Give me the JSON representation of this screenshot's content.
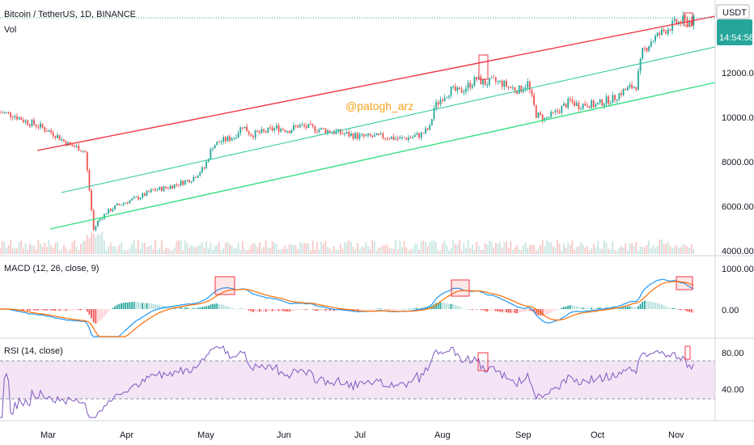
{
  "header": {
    "symbol": "Bitcoin / TetherUS, 1D, BINANCE",
    "volume_label": "Vol",
    "currency": "USDT",
    "countdown": "14:54:58"
  },
  "watermark": "@patogh_arz",
  "colors": {
    "up": "#26a69a",
    "down": "#ef5350",
    "resistance": "#f23645",
    "mid_channel": "#26c6a0",
    "support": "#35e07e",
    "macd_line": "#2196f3",
    "signal_line": "#ff6d00",
    "rsi_line": "#7e57c2",
    "rsi_band": "#f3e5f5",
    "price_badge": "#26a69a"
  },
  "chart_data": [
    {
      "type": "candlestick",
      "title": "Bitcoin / TetherUS, 1D, BINANCE",
      "x_ticks": [
        "Mar",
        "Apr",
        "May",
        "Jun",
        "Jul",
        "Aug",
        "Sep",
        "Oct",
        "Nov"
      ],
      "y_ticks": [
        "12000.00",
        "10000.00",
        "8000.00",
        "6000.00",
        "4000.00"
      ],
      "ylim": [
        4000,
        14500
      ],
      "close_path": [
        [
          0,
          10300
        ],
        [
          6,
          10200
        ],
        [
          12,
          9900
        ],
        [
          18,
          9700
        ],
        [
          22,
          9500
        ],
        [
          26,
          9300
        ],
        [
          30,
          9000
        ],
        [
          33,
          8800
        ],
        [
          37,
          8700
        ],
        [
          40,
          8500
        ],
        [
          42,
          6800
        ],
        [
          44,
          5000
        ],
        [
          46,
          5400
        ],
        [
          50,
          5800
        ],
        [
          55,
          6100
        ],
        [
          60,
          6300
        ],
        [
          66,
          6500
        ],
        [
          72,
          6800
        ],
        [
          78,
          6900
        ],
        [
          84,
          7100
        ],
        [
          90,
          7300
        ],
        [
          96,
          7800
        ],
        [
          100,
          8800
        ],
        [
          104,
          9000
        ],
        [
          110,
          9200
        ],
        [
          114,
          9700
        ],
        [
          118,
          9300
        ],
        [
          124,
          9400
        ],
        [
          130,
          9600
        ],
        [
          136,
          9500
        ],
        [
          140,
          9700
        ],
        [
          146,
          9600
        ],
        [
          152,
          9500
        ],
        [
          158,
          9400
        ],
        [
          164,
          9300
        ],
        [
          170,
          9200
        ],
        [
          176,
          9200
        ],
        [
          182,
          9200
        ],
        [
          188,
          9100
        ],
        [
          194,
          9200
        ],
        [
          198,
          9300
        ],
        [
          202,
          9600
        ],
        [
          204,
          10500
        ],
        [
          208,
          11000
        ],
        [
          212,
          11300
        ],
        [
          216,
          11200
        ],
        [
          220,
          11500
        ],
        [
          224,
          11800
        ],
        [
          228,
          11600
        ],
        [
          232,
          11700
        ],
        [
          236,
          11600
        ],
        [
          240,
          11400
        ],
        [
          244,
          11300
        ],
        [
          248,
          11600
        ],
        [
          252,
          10200
        ],
        [
          256,
          10000
        ],
        [
          260,
          10200
        ],
        [
          264,
          10500
        ],
        [
          268,
          10800
        ],
        [
          272,
          10600
        ],
        [
          276,
          10700
        ],
        [
          280,
          10600
        ],
        [
          284,
          10800
        ],
        [
          288,
          10900
        ],
        [
          292,
          11200
        ],
        [
          296,
          11400
        ],
        [
          299,
          11500
        ],
        [
          302,
          13000
        ],
        [
          306,
          13500
        ],
        [
          310,
          13800
        ],
        [
          314,
          14100
        ],
        [
          318,
          14300
        ],
        [
          321,
          14400
        ]
      ]
    },
    {
      "type": "line",
      "title": "MACD (12, 26, close, 9)",
      "y_ticks": [
        "1000.00",
        "0.00"
      ]
    },
    {
      "type": "line",
      "title": "RSI (14, close)",
      "y_ticks": [
        "80.00",
        "40.00"
      ],
      "overbought": 70,
      "oversold": 30
    }
  ]
}
